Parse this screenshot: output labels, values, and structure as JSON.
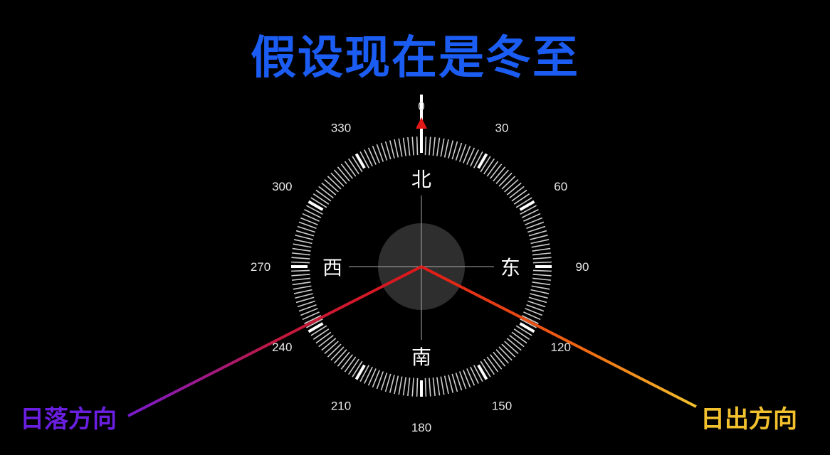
{
  "title": "假设现在是冬至",
  "compass": {
    "cardinals": {
      "north": "北",
      "east": "东",
      "south": "南",
      "west": "西"
    },
    "degree_labels": [
      "0",
      "30",
      "60",
      "90",
      "120",
      "150",
      "180",
      "210",
      "240",
      "270",
      "300",
      "330"
    ],
    "heading_deg": 0
  },
  "annotations": {
    "sunset": {
      "label": "日落方向",
      "color": "#6a1fe0"
    },
    "sunrise": {
      "label": "日出方向",
      "color": "#f2c12e"
    }
  },
  "colors": {
    "title": "#1b5cf2",
    "needle": "#e01818",
    "line_start": "#e01818"
  }
}
